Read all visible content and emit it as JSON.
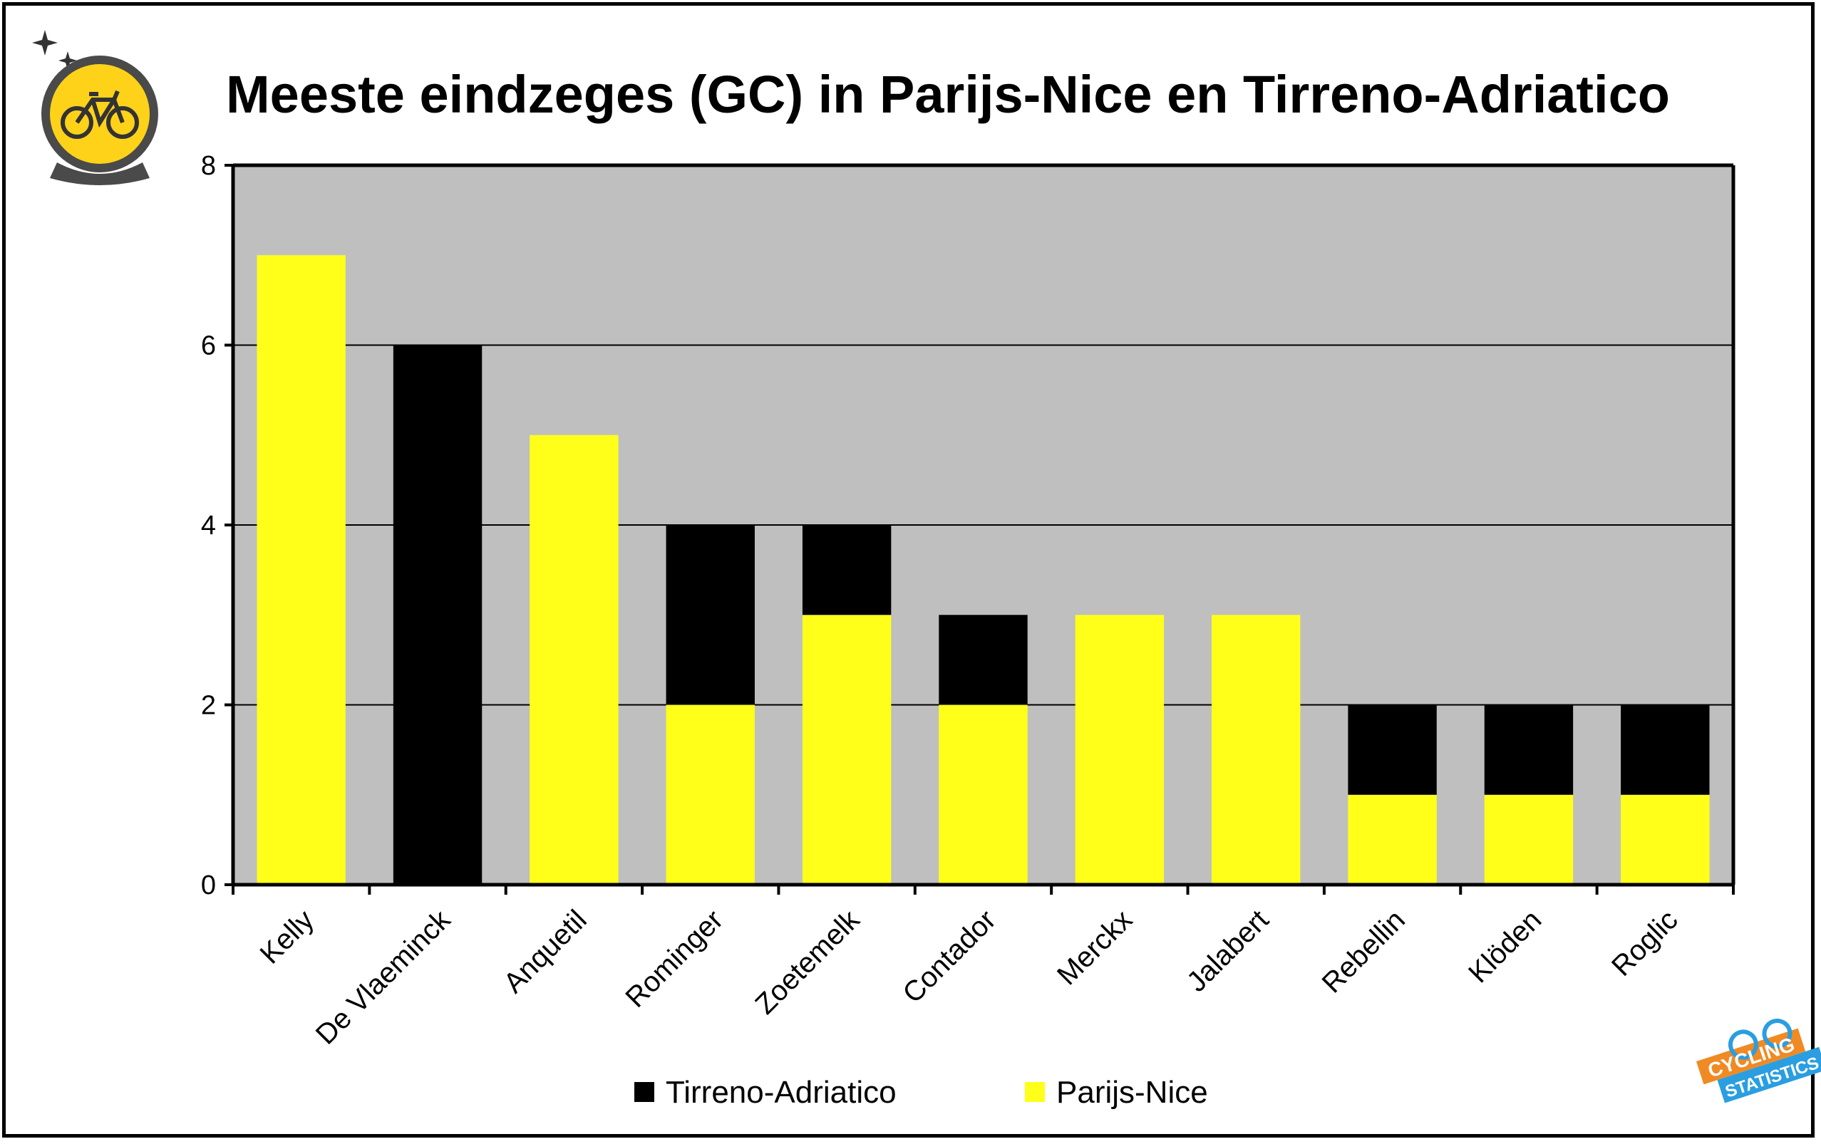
{
  "chart_data": {
    "type": "bar",
    "stacked": true,
    "title": "Meeste eindzeges (GC) in Parijs-Nice en Tirreno-Adriatico",
    "xlabel": "",
    "ylabel": "",
    "ylim": [
      0,
      8
    ],
    "yticks": [
      0,
      2,
      4,
      6,
      8
    ],
    "grid": true,
    "legend_position": "bottom",
    "categories": [
      "Kelly",
      "De Vlaeminck",
      "Anquetil",
      "Rominger",
      "Zoetemelk",
      "Contador",
      "Merckx",
      "Jalabert",
      "Rebellin",
      "Klöden",
      "Roglic"
    ],
    "series": [
      {
        "name": "Parijs-Nice",
        "color": "#ffff1a",
        "values": [
          7,
          0,
          5,
          2,
          3,
          2,
          3,
          3,
          1,
          1,
          1
        ]
      },
      {
        "name": "Tirreno-Adriatico",
        "color": "#000000",
        "values": [
          0,
          6,
          0,
          2,
          1,
          1,
          0,
          0,
          1,
          1,
          1
        ]
      }
    ],
    "legend_order": [
      "Tirreno-Adriatico",
      "Parijs-Nice"
    ],
    "plot_background": "#bfbfbf"
  },
  "logos": {
    "top_left": "crystal-ball-bicycle-logo",
    "bottom_right": "cycling-statistics-logo"
  }
}
